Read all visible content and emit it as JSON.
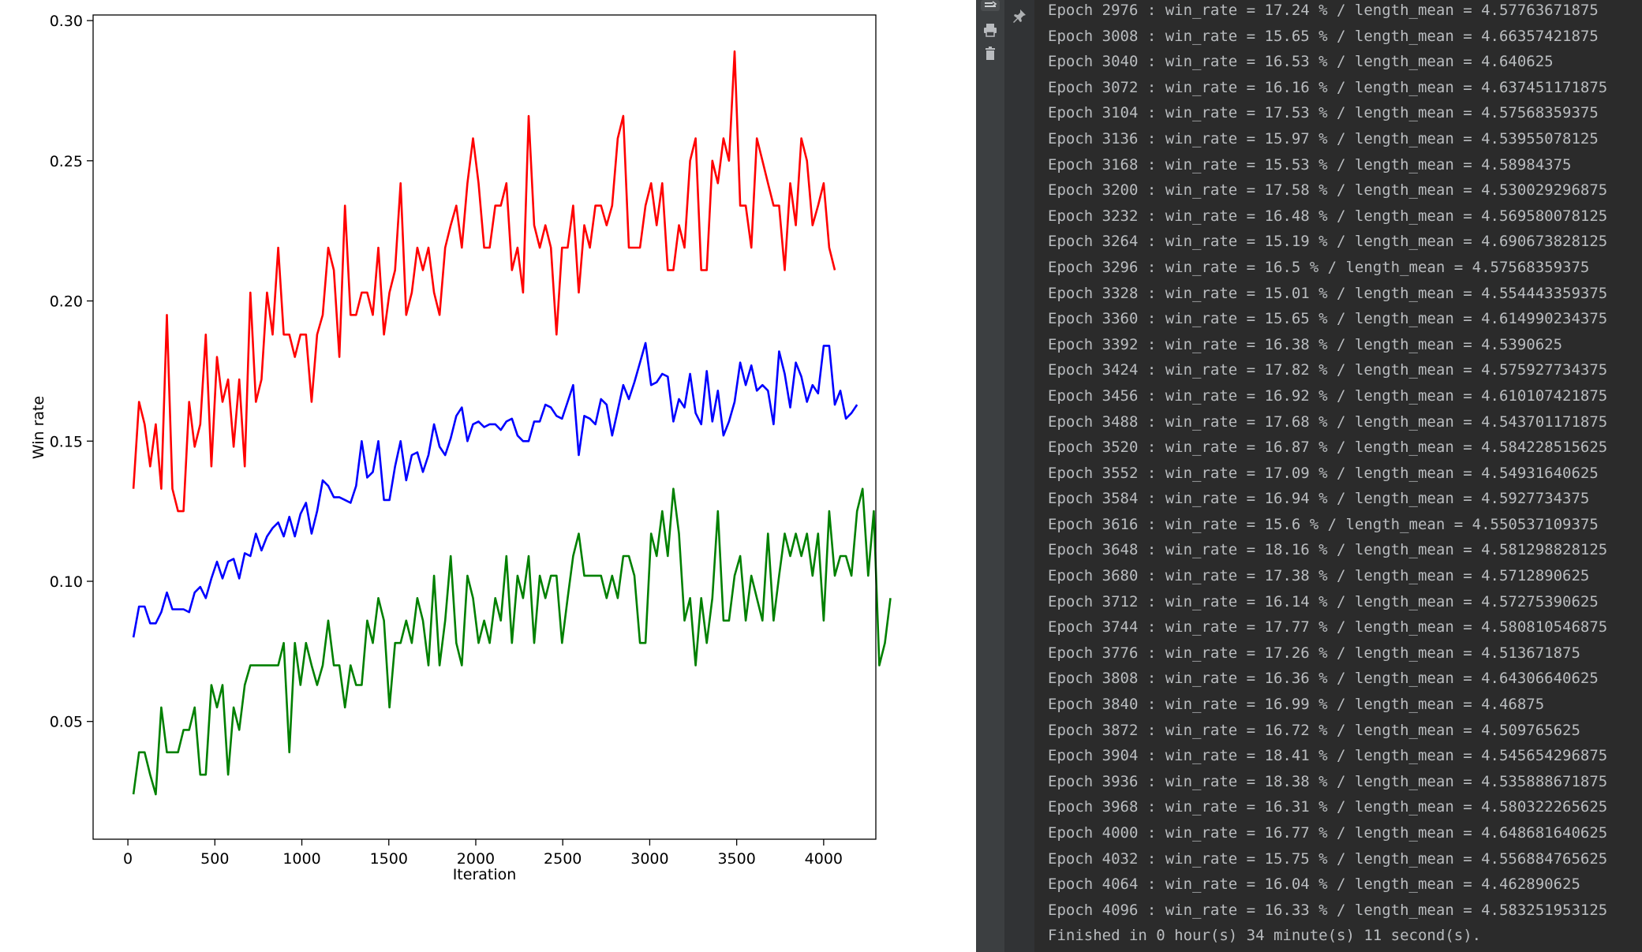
{
  "chart_data": {
    "type": "line",
    "title": "",
    "xlabel": "Iteration",
    "ylabel": "Win rate",
    "xlim": [
      -200,
      4300
    ],
    "ylim": [
      0.008,
      0.302
    ],
    "xticks": [
      0,
      500,
      1000,
      1500,
      2000,
      2500,
      3000,
      3500,
      4000
    ],
    "yticks": [
      0.05,
      0.1,
      0.15,
      0.2,
      0.25,
      0.3
    ],
    "ytick_labels": [
      "0.05",
      "0.10",
      "0.15",
      "0.20",
      "0.25",
      "0.30"
    ],
    "grid": false,
    "legend": "none",
    "x_start": 32,
    "x_step": 32,
    "series": [
      {
        "color": "#ff0000",
        "values": [
          0.133,
          0.164,
          0.156,
          0.141,
          0.156,
          0.133,
          0.195,
          0.133,
          0.125,
          0.125,
          0.164,
          0.148,
          0.156,
          0.188,
          0.141,
          0.18,
          0.164,
          0.172,
          0.148,
          0.172,
          0.141,
          0.203,
          0.164,
          0.172,
          0.203,
          0.188,
          0.219,
          0.188,
          0.188,
          0.18,
          0.188,
          0.188,
          0.164,
          0.188,
          0.195,
          0.219,
          0.211,
          0.18,
          0.234,
          0.195,
          0.195,
          0.203,
          0.203,
          0.195,
          0.219,
          0.188,
          0.203,
          0.211,
          0.242,
          0.195,
          0.203,
          0.219,
          0.211,
          0.219,
          0.203,
          0.195,
          0.219,
          0.227,
          0.234,
          0.219,
          0.242,
          0.258,
          0.242,
          0.219,
          0.219,
          0.234,
          0.234,
          0.242,
          0.211,
          0.219,
          0.203,
          0.266,
          0.227,
          0.219,
          0.227,
          0.219,
          0.188,
          0.219,
          0.219,
          0.234,
          0.203,
          0.227,
          0.219,
          0.234,
          0.234,
          0.227,
          0.234,
          0.258,
          0.266,
          0.219,
          0.219,
          0.219,
          0.234,
          0.242,
          0.227,
          0.242,
          0.211,
          0.211,
          0.227,
          0.219,
          0.25,
          0.258,
          0.211,
          0.211,
          0.25,
          0.242,
          0.258,
          0.25,
          0.289,
          0.234,
          0.234,
          0.219,
          0.258,
          0.25,
          0.242,
          0.234,
          0.234,
          0.211,
          0.242,
          0.227,
          0.258,
          0.25,
          0.227,
          0.234,
          0.242,
          0.219,
          0.211
        ]
      },
      {
        "color": "#0000ff",
        "values": [
          0.08,
          0.091,
          0.091,
          0.085,
          0.085,
          0.089,
          0.096,
          0.09,
          0.09,
          0.09,
          0.089,
          0.096,
          0.098,
          0.094,
          0.101,
          0.107,
          0.101,
          0.107,
          0.108,
          0.101,
          0.11,
          0.109,
          0.117,
          0.111,
          0.116,
          0.119,
          0.121,
          0.116,
          0.123,
          0.116,
          0.124,
          0.128,
          0.117,
          0.125,
          0.136,
          0.134,
          0.13,
          0.13,
          0.129,
          0.128,
          0.134,
          0.15,
          0.137,
          0.139,
          0.15,
          0.129,
          0.129,
          0.141,
          0.15,
          0.136,
          0.145,
          0.146,
          0.139,
          0.145,
          0.156,
          0.148,
          0.145,
          0.151,
          0.159,
          0.162,
          0.15,
          0.156,
          0.157,
          0.155,
          0.156,
          0.156,
          0.154,
          0.157,
          0.158,
          0.152,
          0.15,
          0.15,
          0.157,
          0.157,
          0.163,
          0.162,
          0.159,
          0.158,
          0.164,
          0.17,
          0.145,
          0.159,
          0.158,
          0.156,
          0.165,
          0.163,
          0.152,
          0.161,
          0.17,
          0.165,
          0.171,
          0.178,
          0.185,
          0.17,
          0.171,
          0.174,
          0.173,
          0.157,
          0.165,
          0.162,
          0.174,
          0.16,
          0.156,
          0.175,
          0.157,
          0.168,
          0.152,
          0.157,
          0.164,
          0.178,
          0.17,
          0.177,
          0.168,
          0.17,
          0.168,
          0.156,
          0.182,
          0.174,
          0.162,
          0.178,
          0.173,
          0.164,
          0.17,
          0.167,
          0.184,
          0.184,
          0.163,
          0.168,
          0.158,
          0.16,
          0.163
        ]
      },
      {
        "color": "#008000",
        "values": [
          0.024,
          0.039,
          0.039,
          0.031,
          0.024,
          0.055,
          0.039,
          0.039,
          0.039,
          0.047,
          0.047,
          0.055,
          0.031,
          0.031,
          0.063,
          0.055,
          0.063,
          0.031,
          0.055,
          0.047,
          0.063,
          0.07,
          0.07,
          0.07,
          0.07,
          0.07,
          0.07,
          0.078,
          0.039,
          0.078,
          0.063,
          0.078,
          0.07,
          0.063,
          0.07,
          0.086,
          0.07,
          0.07,
          0.055,
          0.07,
          0.063,
          0.063,
          0.086,
          0.078,
          0.094,
          0.086,
          0.055,
          0.078,
          0.078,
          0.086,
          0.078,
          0.094,
          0.086,
          0.07,
          0.102,
          0.07,
          0.086,
          0.109,
          0.078,
          0.07,
          0.102,
          0.094,
          0.078,
          0.086,
          0.078,
          0.094,
          0.086,
          0.109,
          0.078,
          0.102,
          0.094,
          0.109,
          0.078,
          0.102,
          0.094,
          0.102,
          0.102,
          0.078,
          0.094,
          0.109,
          0.117,
          0.102,
          0.102,
          0.102,
          0.102,
          0.094,
          0.102,
          0.094,
          0.109,
          0.109,
          0.102,
          0.078,
          0.078,
          0.117,
          0.109,
          0.125,
          0.109,
          0.133,
          0.117,
          0.086,
          0.094,
          0.07,
          0.094,
          0.078,
          0.094,
          0.125,
          0.086,
          0.086,
          0.102,
          0.109,
          0.086,
          0.102,
          0.094,
          0.086,
          0.117,
          0.086,
          0.102,
          0.117,
          0.109,
          0.117,
          0.109,
          0.117,
          0.102,
          0.117,
          0.086,
          0.125,
          0.102,
          0.109,
          0.109,
          0.102,
          0.125,
          0.133,
          0.102,
          0.125,
          0.07,
          0.078,
          0.094
        ]
      }
    ]
  },
  "icons": {
    "strip": [
      "scroll-to-end-icon",
      "print-icon",
      "trash-icon"
    ],
    "gutter": [
      "pin-icon"
    ]
  },
  "console": {
    "lines": [
      "Epoch 2976 : win_rate = 17.24 % / length_mean = 4.57763671875",
      "Epoch 3008 : win_rate = 15.65 % / length_mean = 4.66357421875",
      "Epoch 3040 : win_rate = 16.53 % / length_mean = 4.640625",
      "Epoch 3072 : win_rate = 16.16 % / length_mean = 4.637451171875",
      "Epoch 3104 : win_rate = 17.53 % / length_mean = 4.57568359375",
      "Epoch 3136 : win_rate = 15.97 % / length_mean = 4.53955078125",
      "Epoch 3168 : win_rate = 15.53 % / length_mean = 4.58984375",
      "Epoch 3200 : win_rate = 17.58 % / length_mean = 4.530029296875",
      "Epoch 3232 : win_rate = 16.48 % / length_mean = 4.569580078125",
      "Epoch 3264 : win_rate = 15.19 % / length_mean = 4.690673828125",
      "Epoch 3296 : win_rate = 16.5 % / length_mean = 4.57568359375",
      "Epoch 3328 : win_rate = 15.01 % / length_mean = 4.554443359375",
      "Epoch 3360 : win_rate = 15.65 % / length_mean = 4.614990234375",
      "Epoch 3392 : win_rate = 16.38 % / length_mean = 4.5390625",
      "Epoch 3424 : win_rate = 17.82 % / length_mean = 4.575927734375",
      "Epoch 3456 : win_rate = 16.92 % / length_mean = 4.610107421875",
      "Epoch 3488 : win_rate = 17.68 % / length_mean = 4.543701171875",
      "Epoch 3520 : win_rate = 16.87 % / length_mean = 4.584228515625",
      "Epoch 3552 : win_rate = 17.09 % / length_mean = 4.54931640625",
      "Epoch 3584 : win_rate = 16.94 % / length_mean = 4.5927734375",
      "Epoch 3616 : win_rate = 15.6 % / length_mean = 4.550537109375",
      "Epoch 3648 : win_rate = 18.16 % / length_mean = 4.581298828125",
      "Epoch 3680 : win_rate = 17.38 % / length_mean = 4.5712890625",
      "Epoch 3712 : win_rate = 16.14 % / length_mean = 4.57275390625",
      "Epoch 3744 : win_rate = 17.77 % / length_mean = 4.580810546875",
      "Epoch 3776 : win_rate = 17.26 % / length_mean = 4.513671875",
      "Epoch 3808 : win_rate = 16.36 % / length_mean = 4.64306640625",
      "Epoch 3840 : win_rate = 16.99 % / length_mean = 4.46875",
      "Epoch 3872 : win_rate = 16.72 % / length_mean = 4.509765625",
      "Epoch 3904 : win_rate = 18.41 % / length_mean = 4.545654296875",
      "Epoch 3936 : win_rate = 18.38 % / length_mean = 4.535888671875",
      "Epoch 3968 : win_rate = 16.31 % / length_mean = 4.580322265625",
      "Epoch 4000 : win_rate = 16.77 % / length_mean = 4.648681640625",
      "Epoch 4032 : win_rate = 15.75 % / length_mean = 4.556884765625",
      "Epoch 4064 : win_rate = 16.04 % / length_mean = 4.462890625",
      "Epoch 4096 : win_rate = 16.33 % / length_mean = 4.583251953125",
      "Finished in 0 hour(s) 34 minute(s) 11 second(s)."
    ]
  }
}
